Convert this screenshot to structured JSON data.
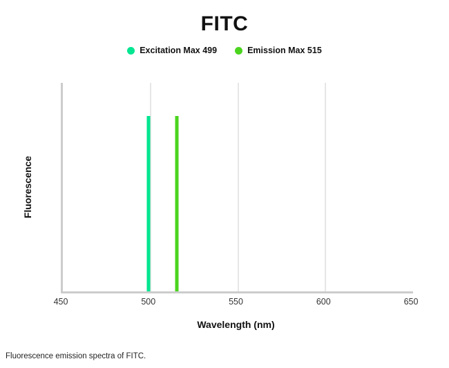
{
  "title": "FITC",
  "legend": [
    {
      "label": "Excitation Max 499",
      "color": "#00E691"
    },
    {
      "label": "Emission Max 515",
      "color": "#4BD41E"
    }
  ],
  "caption": "Fluorescence emission spectra of FITC.",
  "chart_data": {
    "type": "line",
    "title": "FITC",
    "xlabel": "Wavelength (nm)",
    "ylabel": "Fluorescence",
    "xlim": [
      450,
      650
    ],
    "x_ticks": [
      450,
      500,
      550,
      600,
      650
    ],
    "grid_ticks": [
      500,
      550,
      600
    ],
    "grid": true,
    "legend_position": "top-center",
    "spike_height_frac": 0.84,
    "series": [
      {
        "name": "Excitation Max 499",
        "color": "#00E691",
        "x": 499,
        "peak_wavelength_nm": 499,
        "relative_intensity": 1.0
      },
      {
        "name": "Emission Max 515",
        "color": "#4BD41E",
        "x": 515,
        "peak_wavelength_nm": 515,
        "relative_intensity": 1.0
      }
    ]
  }
}
